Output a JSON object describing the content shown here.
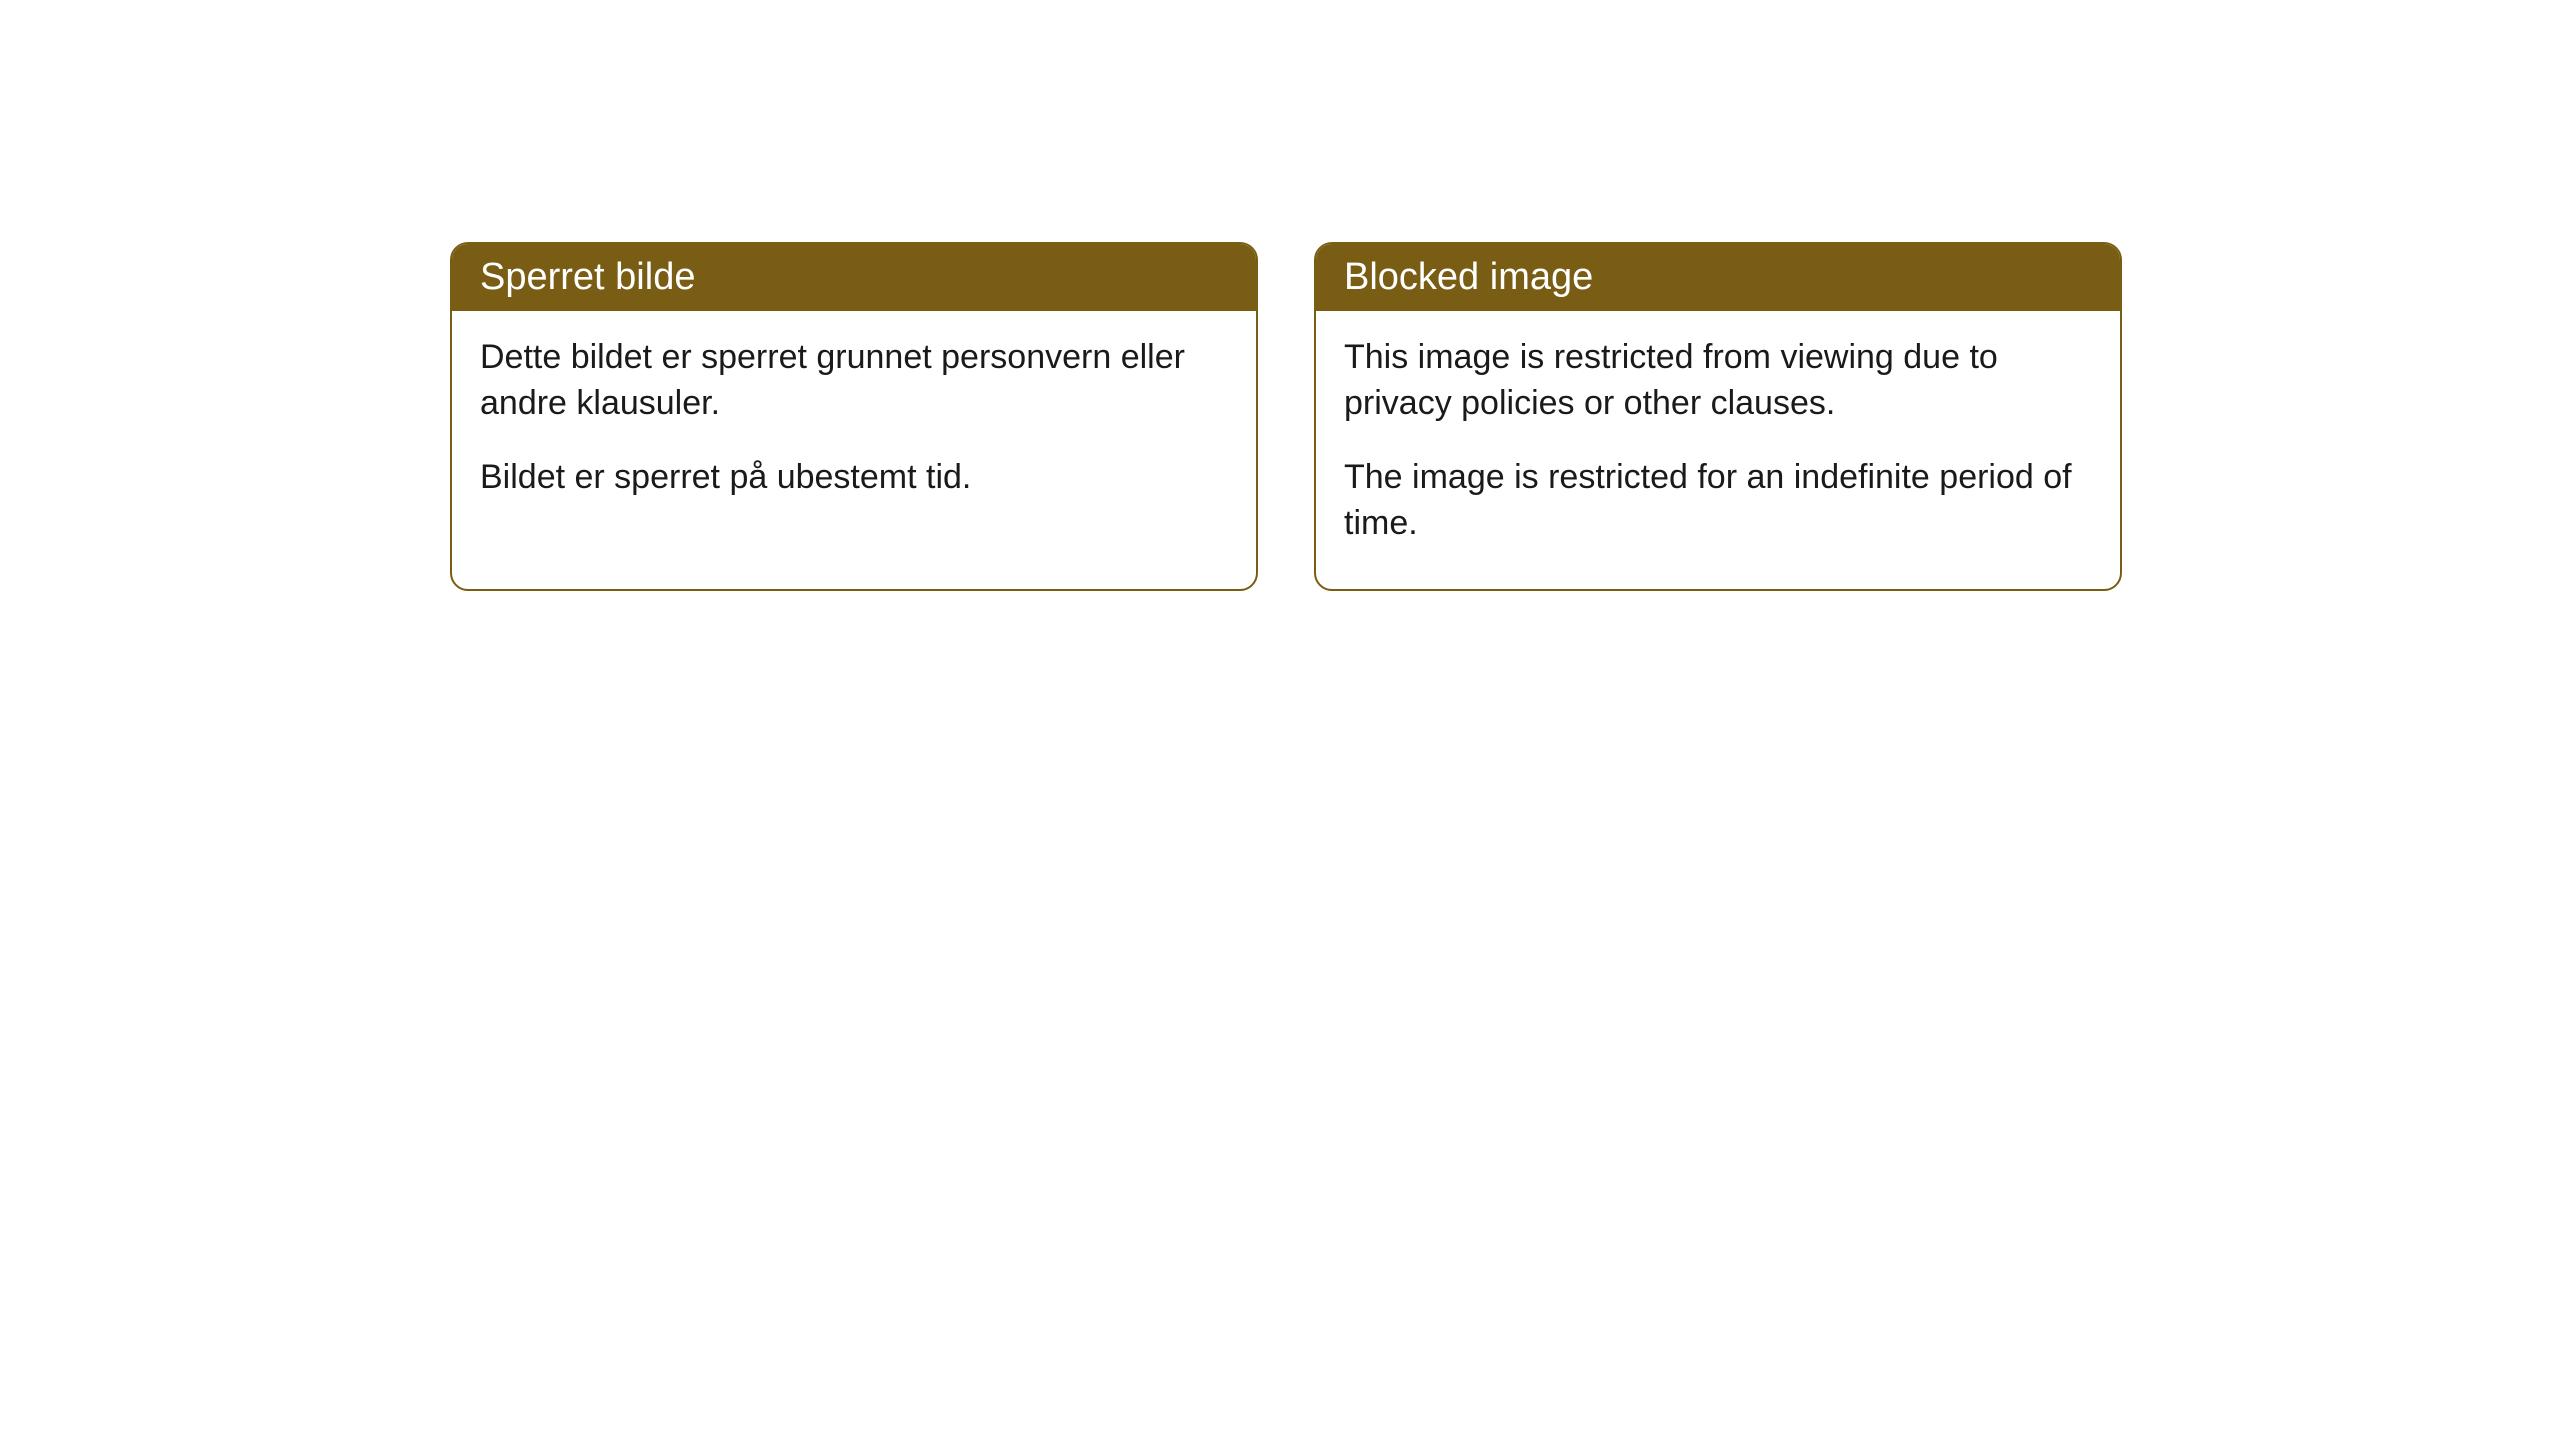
{
  "cards": [
    {
      "title": "Sperret bilde",
      "paragraph1": "Dette bildet er sperret grunnet personvern eller andre klausuler.",
      "paragraph2": "Bildet er sperret på ubestemt tid."
    },
    {
      "title": "Blocked image",
      "paragraph1": "This image is restricted from viewing due to privacy policies or other clauses.",
      "paragraph2": "The image is restricted for an indefinite period of time."
    }
  ],
  "styling": {
    "header_background": "#7a5d14",
    "header_text_color": "#ffffff",
    "border_color": "#7a5d14",
    "body_background": "#ffffff",
    "body_text_color": "#1a1a1a",
    "border_radius": 18,
    "title_fontsize": 38,
    "body_fontsize": 34
  }
}
